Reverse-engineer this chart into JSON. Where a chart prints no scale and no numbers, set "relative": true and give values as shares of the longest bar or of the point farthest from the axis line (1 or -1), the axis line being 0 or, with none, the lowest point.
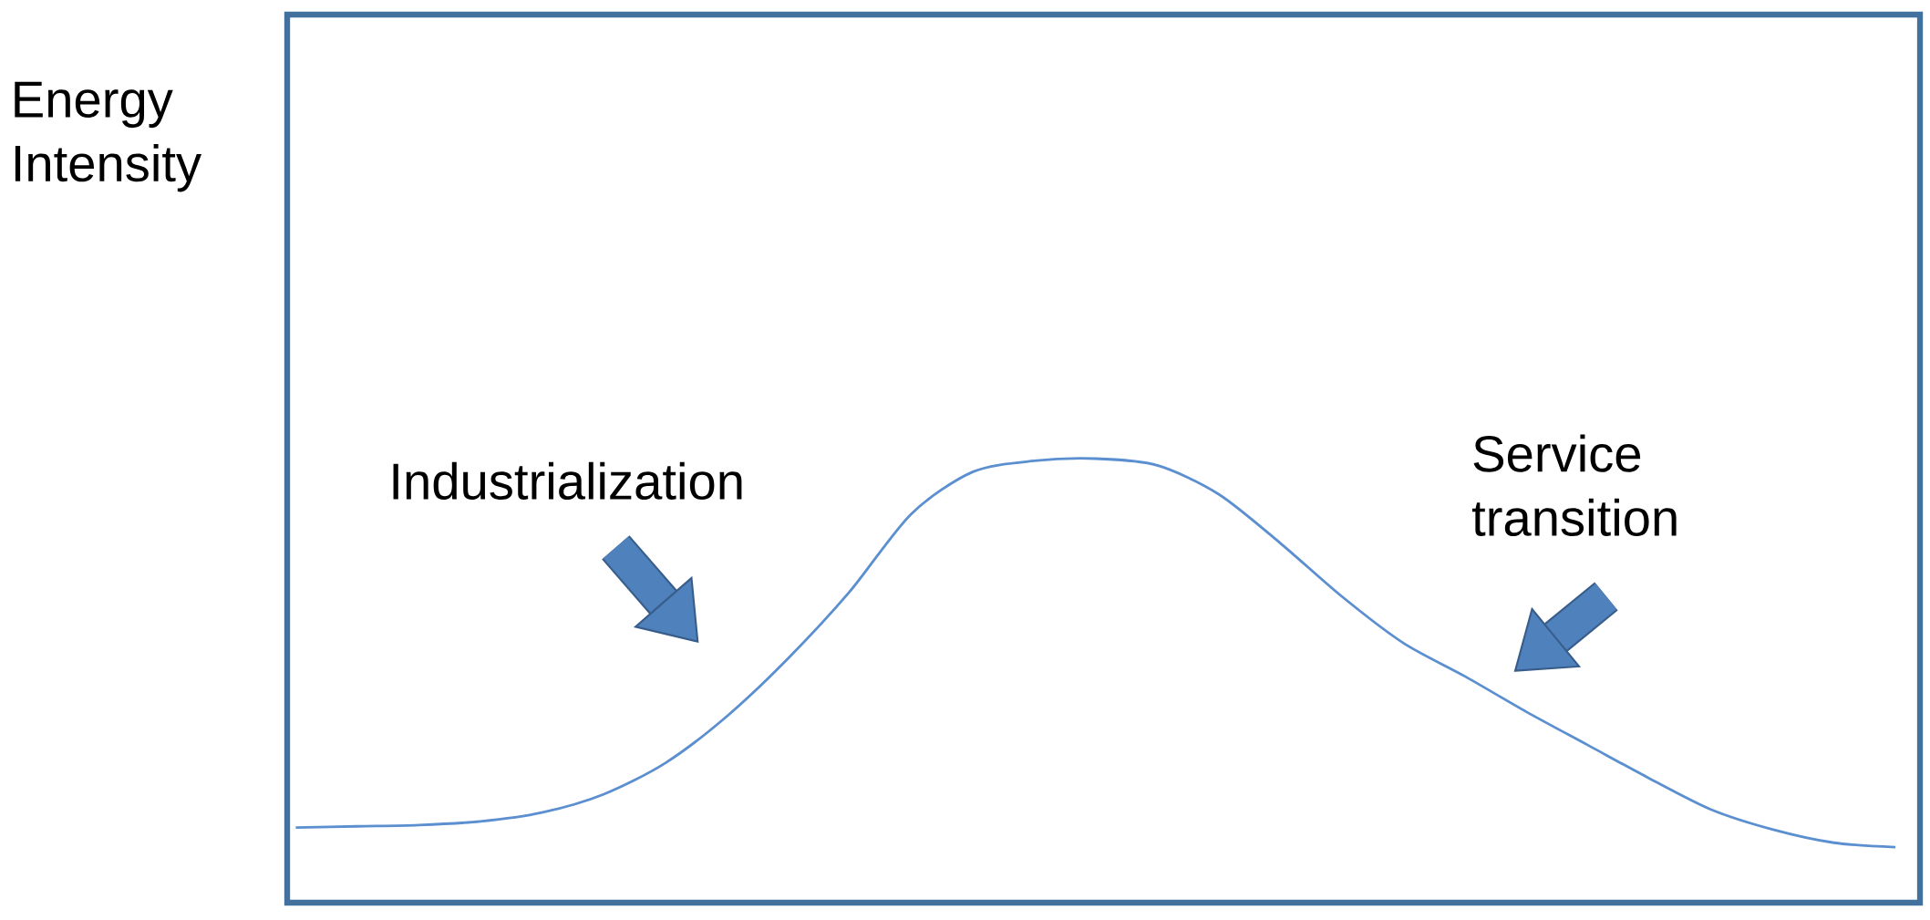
{
  "chart_data": {
    "type": "line",
    "relative": true,
    "color": "#5b8fd0",
    "categories": [
      null,
      null,
      null,
      null,
      null,
      null,
      null,
      null,
      null,
      null,
      null,
      null,
      null,
      null,
      null,
      null,
      null,
      null,
      null,
      null,
      null,
      null,
      null,
      null,
      null,
      null,
      null
    ],
    "values": [
      0.169,
      0.172,
      0.175,
      0.183,
      0.203,
      0.244,
      0.314,
      0.419,
      0.55,
      0.7,
      0.875,
      0.97,
      0.995,
      1.0,
      0.985,
      0.92,
      0.81,
      0.69,
      0.585,
      0.51,
      0.43,
      0.355,
      0.28,
      0.21,
      0.165,
      0.135,
      0.125
    ],
    "annotations": [
      "Energy Intensity",
      "Industrialization",
      "Service transition"
    ]
  }
}
